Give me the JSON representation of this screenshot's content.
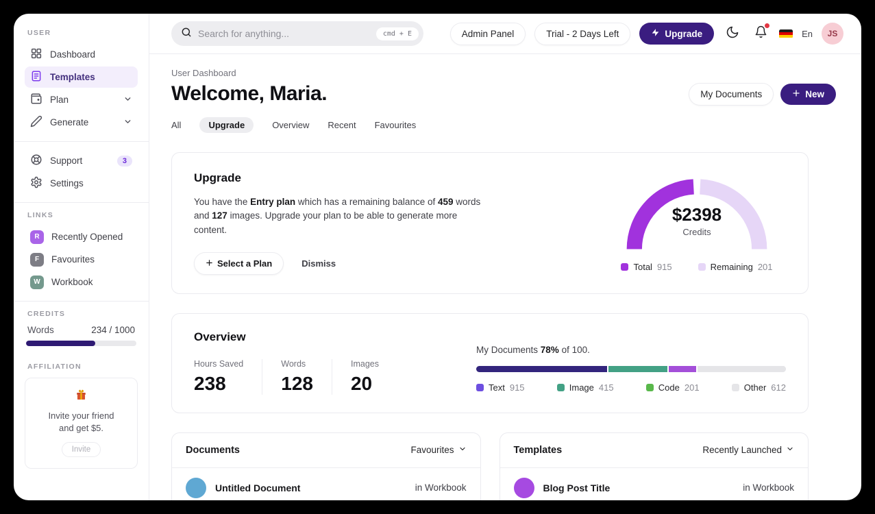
{
  "topbar": {
    "search": {
      "placeholder": "Search for anything...",
      "shortcut": "cmd + E"
    },
    "admin_panel": "Admin Panel",
    "trial": "Trial - 2 Days Left",
    "upgrade": "Upgrade",
    "language": "En",
    "avatar_initials": "JS"
  },
  "sidebar": {
    "section_user": "USER",
    "section_links": "LINKS",
    "section_credits": "CREDITS",
    "section_affiliation": "AFFILIATION",
    "items": [
      {
        "label": "Dashboard"
      },
      {
        "label": "Templates"
      },
      {
        "label": "Plan"
      },
      {
        "label": "Generate"
      }
    ],
    "support": {
      "label": "Support",
      "badge": "3"
    },
    "settings": {
      "label": "Settings"
    },
    "links": [
      {
        "initial": "R",
        "label": "Recently Opened",
        "color": "#a964e8"
      },
      {
        "initial": "F",
        "label": "Favourites",
        "color": "#7d7d85"
      },
      {
        "initial": "W",
        "label": "Workbook",
        "color": "#74998d"
      }
    ],
    "credits": {
      "label": "Words",
      "value": "234 / 1000"
    },
    "affiliation": {
      "line1": "Invite your friend",
      "line2": "and get $5.",
      "button": "Invite"
    }
  },
  "main": {
    "breadcrumb": "User Dashboard",
    "title": "Welcome, Maria.",
    "my_documents_button": "My Documents",
    "new_button": "New",
    "tabs": [
      "All",
      "Upgrade",
      "Overview",
      "Recent",
      "Favourites"
    ],
    "active_tab": "Upgrade"
  },
  "upgrade_card": {
    "title": "Upgrade",
    "body": {
      "p1": "You have the ",
      "b1": "Entry plan",
      "p2": " which has a remaining balance of ",
      "b2": "459",
      "p3": " words and ",
      "b3": "127",
      "p4": " images. Upgrade your plan to be able to generate more content."
    },
    "select_plan_button": "Select a Plan",
    "dismiss_button": "Dismiss"
  },
  "overview_card": {
    "title": "Overview",
    "stats": [
      {
        "label": "Hours Saved",
        "value": "238"
      },
      {
        "label": "Words",
        "value": "128"
      },
      {
        "label": "Images",
        "value": "20"
      }
    ],
    "progress_text": {
      "prefix": "My Documents ",
      "bold": "78%",
      "suffix": " of 100."
    }
  },
  "documents_card": {
    "title": "Documents",
    "filter": "Favourites",
    "rows": [
      {
        "title": "Untitled Document",
        "location": "in Workbook",
        "avatar_color": "#5fa8d3"
      }
    ]
  },
  "templates_card": {
    "title": "Templates",
    "filter": "Recently Launched",
    "rows": [
      {
        "title": "Blog Post Title",
        "location": "in Workbook",
        "avatar_color": "#a64ae1"
      }
    ]
  },
  "chart_data": [
    {
      "type": "donut-gauge",
      "title": "$2398",
      "subtitle": "Credits",
      "legend_position": "bottom",
      "series": [
        {
          "name": "Total",
          "value": 915,
          "color": "#a132dd"
        },
        {
          "name": "Remaining",
          "value": 201,
          "color": "#e6d6f7"
        }
      ]
    },
    {
      "type": "stacked-bar",
      "title": "My Documents 78% of 100.",
      "percent": 78,
      "of_total": 100,
      "segments": [
        {
          "name": "Text",
          "value": 915,
          "bar_color": "#33257d",
          "legend_color": "#6d4fe0"
        },
        {
          "name": "Image",
          "value": 415,
          "bar_color": "#43a185",
          "legend_color": "#43a185"
        },
        {
          "name": "Code",
          "value": 201,
          "bar_color": "#a44fd9",
          "legend_color": "#59b84b"
        },
        {
          "name": "Other",
          "value": 612,
          "bar_color": "#e5e5e8",
          "legend_color": "#e5e5e8"
        }
      ]
    }
  ]
}
